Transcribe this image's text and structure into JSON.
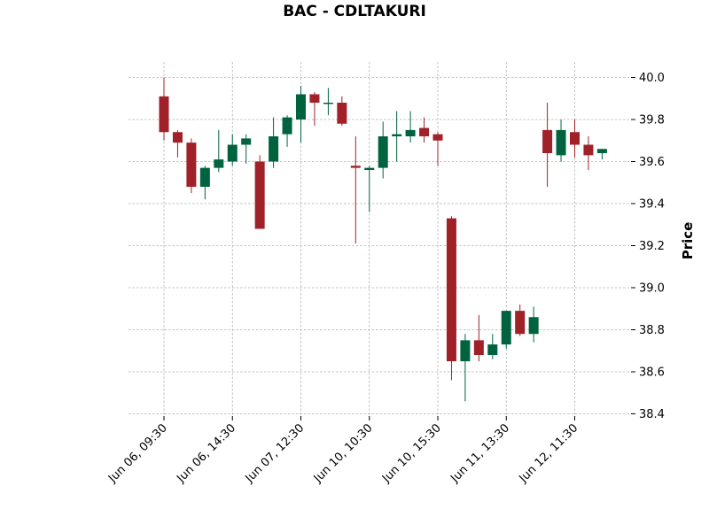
{
  "chart_data": {
    "type": "candlestick",
    "title": "BAC - CDLTAKURI",
    "ylabel": "Price",
    "xlabel": "",
    "ylim": [
      38.4,
      40.0
    ],
    "y_ticks": [
      "38.4",
      "38.6",
      "38.8",
      "39.0",
      "39.2",
      "39.4",
      "39.6",
      "39.8",
      "40.0"
    ],
    "y_axis_side": "right",
    "grid": true,
    "colors": {
      "up": "#006340",
      "down": "#a02128",
      "grid": "#b0b0b0"
    },
    "x_ticks": [
      {
        "index": 0,
        "label": "Jun 06, 09:30"
      },
      {
        "index": 5,
        "label": "Jun 06, 14:30"
      },
      {
        "index": 10,
        "label": "Jun 07, 12:30"
      },
      {
        "index": 15,
        "label": "Jun 10, 10:30"
      },
      {
        "index": 20,
        "label": "Jun 10, 15:30"
      },
      {
        "index": 25,
        "label": "Jun 11, 13:30"
      },
      {
        "index": 30,
        "label": "Jun 12, 11:30"
      }
    ],
    "candles": [
      {
        "open": 39.91,
        "high": 40.0,
        "low": 39.7,
        "close": 39.74
      },
      {
        "open": 39.74,
        "high": 39.75,
        "low": 39.62,
        "close": 39.69
      },
      {
        "open": 39.69,
        "high": 39.71,
        "low": 39.45,
        "close": 39.48
      },
      {
        "open": 39.48,
        "high": 39.58,
        "low": 39.42,
        "close": 39.57
      },
      {
        "open": 39.57,
        "high": 39.75,
        "low": 39.55,
        "close": 39.61
      },
      {
        "open": 39.6,
        "high": 39.73,
        "low": 39.58,
        "close": 39.68
      },
      {
        "open": 39.68,
        "high": 39.73,
        "low": 39.59,
        "close": 39.71
      },
      {
        "open": 39.6,
        "high": 39.63,
        "low": 39.28,
        "close": 39.28
      },
      {
        "open": 39.6,
        "high": 39.81,
        "low": 39.57,
        "close": 39.72
      },
      {
        "open": 39.73,
        "high": 39.82,
        "low": 39.67,
        "close": 39.81
      },
      {
        "open": 39.8,
        "high": 39.96,
        "low": 39.69,
        "close": 39.92
      },
      {
        "open": 39.92,
        "high": 39.93,
        "low": 39.77,
        "close": 39.88
      },
      {
        "open": 39.88,
        "high": 39.95,
        "low": 39.82,
        "close": 39.88
      },
      {
        "open": 39.88,
        "high": 39.91,
        "low": 39.77,
        "close": 39.78
      },
      {
        "open": 39.58,
        "high": 39.72,
        "low": 39.21,
        "close": 39.57
      },
      {
        "open": 39.56,
        "high": 39.58,
        "low": 39.36,
        "close": 39.57
      },
      {
        "open": 39.57,
        "high": 39.79,
        "low": 39.52,
        "close": 39.72
      },
      {
        "open": 39.72,
        "high": 39.84,
        "low": 39.6,
        "close": 39.73
      },
      {
        "open": 39.72,
        "high": 39.84,
        "low": 39.69,
        "close": 39.75
      },
      {
        "open": 39.76,
        "high": 39.81,
        "low": 39.69,
        "close": 39.72
      },
      {
        "open": 39.73,
        "high": 39.74,
        "low": 39.58,
        "close": 39.7
      },
      {
        "open": 39.33,
        "high": 39.34,
        "low": 38.56,
        "close": 38.65
      },
      {
        "open": 38.65,
        "high": 38.78,
        "low": 38.46,
        "close": 38.75
      },
      {
        "open": 38.75,
        "high": 38.87,
        "low": 38.65,
        "close": 38.68
      },
      {
        "open": 38.68,
        "high": 38.78,
        "low": 38.66,
        "close": 38.73
      },
      {
        "open": 38.73,
        "high": 38.89,
        "low": 38.71,
        "close": 38.89
      },
      {
        "open": 38.89,
        "high": 38.92,
        "low": 38.77,
        "close": 38.78
      },
      {
        "open": 38.78,
        "high": 38.91,
        "low": 38.74,
        "close": 38.86
      },
      {
        "open": 39.75,
        "high": 39.88,
        "low": 39.48,
        "close": 39.64
      },
      {
        "open": 39.63,
        "high": 39.8,
        "low": 39.6,
        "close": 39.75
      },
      {
        "open": 39.74,
        "high": 39.8,
        "low": 39.62,
        "close": 39.68
      },
      {
        "open": 39.68,
        "high": 39.72,
        "low": 39.56,
        "close": 39.63
      },
      {
        "open": 39.64,
        "high": 39.66,
        "low": 39.61,
        "close": 39.66
      }
    ]
  }
}
